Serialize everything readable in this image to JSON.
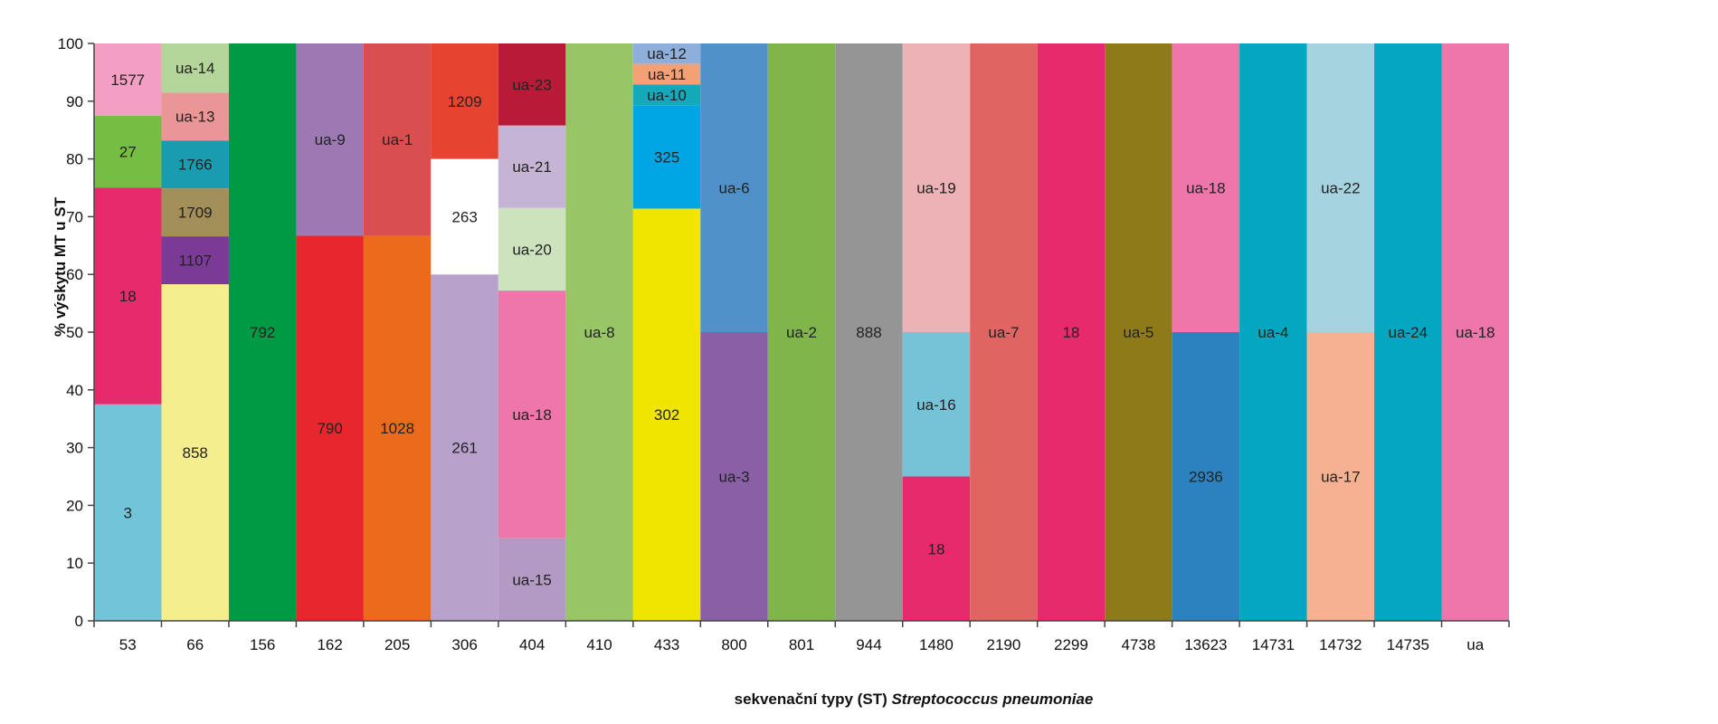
{
  "chart_data": {
    "type": "bar",
    "stacked": true,
    "xlabel": {
      "prefix": "sekvenační typy (ST) ",
      "italic": "Streptococcus pneumoniae"
    },
    "ylabel": "% výskytu MT u ST",
    "ylim": [
      0,
      100
    ],
    "yticks": [
      0,
      10,
      20,
      30,
      40,
      50,
      60,
      70,
      80,
      90,
      100
    ],
    "grid": false,
    "legend": "none",
    "categories": [
      "53",
      "66",
      "156",
      "162",
      "205",
      "306",
      "404",
      "410",
      "433",
      "800",
      "801",
      "944",
      "1480",
      "2190",
      "2299",
      "4738",
      "13623",
      "14731",
      "14732",
      "14735",
      "ua"
    ],
    "bars": [
      {
        "category": "53",
        "segments": [
          {
            "label": "3",
            "value": 37.5,
            "color": "#72c5d8"
          },
          {
            "label": "18",
            "value": 37.5,
            "color": "#e62a6c"
          },
          {
            "label": "27",
            "value": 12.5,
            "color": "#76bd43"
          },
          {
            "label": "1577",
            "value": 12.5,
            "color": "#f39fc3"
          }
        ]
      },
      {
        "category": "66",
        "segments": [
          {
            "label": "858",
            "value": 58.3,
            "color": "#f5ee8e"
          },
          {
            "label": "1107",
            "value": 8.3,
            "color": "#7b3a96"
          },
          {
            "label": "1709",
            "value": 8.3,
            "color": "#a28f5a"
          },
          {
            "label": "1766",
            "value": 8.3,
            "color": "#1a9cb0"
          },
          {
            "label": "ua-13",
            "value": 8.3,
            "color": "#ea9696"
          },
          {
            "label": "ua-14",
            "value": 8.5,
            "color": "#b5d69a"
          }
        ]
      },
      {
        "category": "156",
        "segments": [
          {
            "label": "792",
            "value": 100,
            "color": "#009a44"
          }
        ]
      },
      {
        "category": "162",
        "segments": [
          {
            "label": "790",
            "value": 66.7,
            "color": "#e8262d"
          },
          {
            "label": "ua-9",
            "value": 33.3,
            "color": "#9c79b3"
          }
        ]
      },
      {
        "category": "205",
        "segments": [
          {
            "label": "1028",
            "value": 66.7,
            "color": "#ec6a1b"
          },
          {
            "label": "ua-1",
            "value": 33.3,
            "color": "#d94f4f"
          }
        ]
      },
      {
        "category": "306",
        "segments": [
          {
            "label": "261",
            "value": 60,
            "color": "#b8a2cc"
          },
          {
            "label": "263",
            "value": 20,
            "color": "#ffffff"
          },
          {
            "label": "1209",
            "value": 20,
            "color": "#e64430"
          }
        ]
      },
      {
        "category": "404",
        "segments": [
          {
            "label": "ua-15",
            "value": 14.3,
            "color": "#b39ac4"
          },
          {
            "label": "ua-18",
            "value": 42.9,
            "color": "#ee76aa"
          },
          {
            "label": "ua-20",
            "value": 14.3,
            "color": "#cde3bd"
          },
          {
            "label": "ua-21",
            "value": 14.3,
            "color": "#c6b4d4"
          },
          {
            "label": "ua-23",
            "value": 14.2,
            "color": "#b81b38"
          }
        ]
      },
      {
        "category": "410",
        "segments": [
          {
            "label": "ua-8",
            "value": 100,
            "color": "#98c565"
          }
        ]
      },
      {
        "category": "433",
        "segments": [
          {
            "label": "302",
            "value": 71.4,
            "color": "#f0e500"
          },
          {
            "label": "325",
            "value": 17.9,
            "color": "#00a6e3"
          },
          {
            "label": "ua-10",
            "value": 3.6,
            "color": "#15a8b8"
          },
          {
            "label": "ua-11",
            "value": 3.6,
            "color": "#f2a074"
          },
          {
            "label": "ua-12",
            "value": 3.5,
            "color": "#8eaedb"
          }
        ]
      },
      {
        "category": "800",
        "segments": [
          {
            "label": "ua-3",
            "value": 50,
            "color": "#8a5fa6"
          },
          {
            "label": "ua-6",
            "value": 50,
            "color": "#4f91c8"
          }
        ]
      },
      {
        "category": "801",
        "segments": [
          {
            "label": "ua-2",
            "value": 100,
            "color": "#7fb54b"
          }
        ]
      },
      {
        "category": "944",
        "segments": [
          {
            "label": "888",
            "value": 100,
            "color": "#959595"
          }
        ]
      },
      {
        "category": "1480",
        "segments": [
          {
            "label": "18",
            "value": 25,
            "color": "#e62a6c"
          },
          {
            "label": "ua-16",
            "value": 25,
            "color": "#76c3d8"
          },
          {
            "label": "ua-19",
            "value": 50,
            "color": "#ecb2b5"
          }
        ]
      },
      {
        "category": "2190",
        "segments": [
          {
            "label": "ua-7",
            "value": 100,
            "color": "#e06461"
          }
        ]
      },
      {
        "category": "2299",
        "segments": [
          {
            "label": "18",
            "value": 100,
            "color": "#e62a6c"
          }
        ]
      },
      {
        "category": "4738",
        "segments": [
          {
            "label": "ua-5",
            "value": 100,
            "color": "#8f7a1a"
          }
        ]
      },
      {
        "category": "13623",
        "segments": [
          {
            "label": "2936",
            "value": 50,
            "color": "#2b82bf"
          },
          {
            "label": "ua-18",
            "value": 50,
            "color": "#ee76aa"
          }
        ]
      },
      {
        "category": "14731",
        "segments": [
          {
            "label": "ua-4",
            "value": 100,
            "color": "#05a7c0"
          }
        ]
      },
      {
        "category": "14732",
        "segments": [
          {
            "label": "ua-17",
            "value": 50,
            "color": "#f6b192"
          },
          {
            "label": "ua-22",
            "value": 50,
            "color": "#a5d4e0"
          }
        ]
      },
      {
        "category": "14735",
        "segments": [
          {
            "label": "ua-24",
            "value": 100,
            "color": "#05a7c0"
          }
        ]
      },
      {
        "category": "ua",
        "segments": [
          {
            "label": "ua-18",
            "value": 100,
            "color": "#ee76aa"
          }
        ]
      }
    ]
  }
}
